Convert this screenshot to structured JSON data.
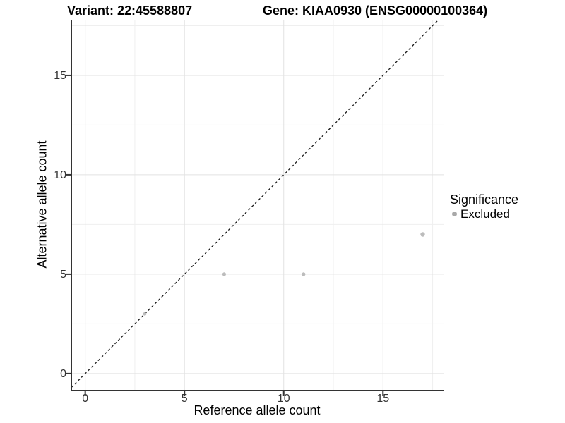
{
  "header": {
    "variant_title": "Variant: 22:45588807",
    "gene_title": "Gene: KIAA0930 (ENSG00000100364)"
  },
  "legend": {
    "title": "Significance",
    "items": [
      {
        "label": "Excluded",
        "marker": "circle-icon",
        "marker_color": "#a9a9a9"
      }
    ]
  },
  "chart_data": {
    "type": "scatter",
    "title_left": "Variant: 22:45588807",
    "title_right": "Gene: KIAA0930 (ENSG00000100364)",
    "xlabel": "Reference allele count",
    "ylabel": "Alternative allele count",
    "xlim": [
      -0.7,
      18.05
    ],
    "ylim": [
      -0.82,
      17.8
    ],
    "x_ticks": [
      0,
      5,
      10,
      15
    ],
    "y_ticks": [
      0,
      5,
      10,
      15
    ],
    "x_minor_gridlines": [
      2.5,
      7.5,
      12.5,
      17.5
    ],
    "y_minor_gridlines": [
      2.5,
      7.5,
      12.5,
      17.5
    ],
    "grid": "major+minor",
    "legend_position": "right",
    "series": [
      {
        "name": "Excluded",
        "color": "#bcbcbc",
        "points": [
          {
            "x": 3,
            "y": 3,
            "r": 2.4
          },
          {
            "x": 7,
            "y": 5,
            "r": 2.6
          },
          {
            "x": 11,
            "y": 5,
            "r": 2.6
          },
          {
            "x": 17,
            "y": 7,
            "r": 3.2
          }
        ]
      }
    ],
    "identity_line": {
      "slope": 1,
      "intercept": 0,
      "style": "dashed",
      "color": "#1b1b1b"
    }
  },
  "colors": {
    "background": "#ffffff",
    "grid_major": "#e2e2e2",
    "grid_minor": "#efefef",
    "axis_line": "#333333",
    "tick_mark": "#333333",
    "tick_text": "#333333",
    "text": "#000000"
  }
}
